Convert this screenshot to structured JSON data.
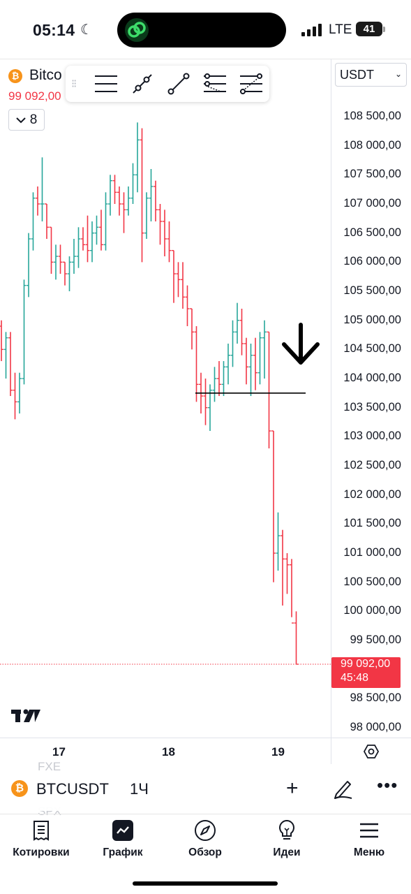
{
  "status_bar": {
    "time": "05:14",
    "network": "LTE",
    "battery": "41"
  },
  "symbol_header": {
    "name": "Bitco",
    "price": "99 092,00",
    "indicators_count": "8"
  },
  "currency_select": {
    "value": "USDT"
  },
  "price_axis": {
    "labels": [
      "108 500,00",
      "108 000,00",
      "107 500,00",
      "107 000,00",
      "106 500,00",
      "106 000,00",
      "105 500,00",
      "105 000,00",
      "104 500,00",
      "104 000,00",
      "103 500,00",
      "103 000,00",
      "102 500,00",
      "102 000,00",
      "101 500,00",
      "101 000,00",
      "100 500,00",
      "100 000,00",
      "99 500,00",
      "98 500,00",
      "98 000,00"
    ],
    "last_price": "99 092,00",
    "countdown": "45:48"
  },
  "time_axis": {
    "labels": [
      "17",
      "18",
      "19"
    ]
  },
  "drawing_toolbar": {
    "tools": [
      "horizontal-lines-icon",
      "trend-line-icon",
      "ray-line-icon",
      "parallel-channel-icon",
      "fib-retracement-icon"
    ]
  },
  "bottom_bar": {
    "symbol": "BTCUSDT",
    "interval": "1Ч",
    "ghost_1": "FXE",
    "ghost_2": "SPX"
  },
  "nav_tabs": [
    {
      "label": "Котировки",
      "icon": "watchlist-icon"
    },
    {
      "label": "График",
      "icon": "chart-icon"
    },
    {
      "label": "Обзор",
      "icon": "compass-icon"
    },
    {
      "label": "Идеи",
      "icon": "lightbulb-icon"
    },
    {
      "label": "Меню",
      "icon": "hamburger-icon"
    }
  ],
  "colors": {
    "up": "#26a69a",
    "down": "#f23645",
    "bitcoin": "#f7931a",
    "text": "#131722"
  },
  "chart_data": {
    "type": "ohlc",
    "interval": "1H",
    "ylim": [
      97850,
      108900
    ],
    "last_price": 99092,
    "bars": [
      {
        "o": 104900,
        "h": 105000,
        "l": 104300,
        "c": 104500
      },
      {
        "o": 104500,
        "h": 104800,
        "l": 104000,
        "c": 104700
      },
      {
        "o": 104700,
        "h": 104800,
        "l": 103700,
        "c": 103800
      },
      {
        "o": 103800,
        "h": 104100,
        "l": 103300,
        "c": 103600
      },
      {
        "o": 103600,
        "h": 104100,
        "l": 103400,
        "c": 104000
      },
      {
        "o": 104000,
        "h": 105700,
        "l": 103900,
        "c": 105600
      },
      {
        "o": 105600,
        "h": 106500,
        "l": 105400,
        "c": 106400
      },
      {
        "o": 106400,
        "h": 107200,
        "l": 106200,
        "c": 107100
      },
      {
        "o": 107100,
        "h": 107300,
        "l": 106800,
        "c": 107000
      },
      {
        "o": 107000,
        "h": 107800,
        "l": 106700,
        "c": 107000
      },
      {
        "o": 107000,
        "h": 107000,
        "l": 106400,
        "c": 106600
      },
      {
        "o": 106600,
        "h": 106600,
        "l": 105800,
        "c": 106000
      },
      {
        "o": 106000,
        "h": 106300,
        "l": 105700,
        "c": 106100
      },
      {
        "o": 106100,
        "h": 106300,
        "l": 105800,
        "c": 106000
      },
      {
        "o": 106000,
        "h": 106000,
        "l": 105600,
        "c": 105800
      },
      {
        "o": 105800,
        "h": 106100,
        "l": 105500,
        "c": 106000
      },
      {
        "o": 106000,
        "h": 106400,
        "l": 105800,
        "c": 106100
      },
      {
        "o": 106100,
        "h": 106600,
        "l": 105900,
        "c": 106400
      },
      {
        "o": 106400,
        "h": 106600,
        "l": 106200,
        "c": 106300
      },
      {
        "o": 106300,
        "h": 106800,
        "l": 106000,
        "c": 106200
      },
      {
        "o": 106200,
        "h": 106700,
        "l": 106000,
        "c": 106500
      },
      {
        "o": 106500,
        "h": 106800,
        "l": 106300,
        "c": 106600
      },
      {
        "o": 106600,
        "h": 106900,
        "l": 106200,
        "c": 106300
      },
      {
        "o": 106300,
        "h": 107200,
        "l": 106200,
        "c": 107000
      },
      {
        "o": 107000,
        "h": 107500,
        "l": 106800,
        "c": 107400
      },
      {
        "o": 107400,
        "h": 107500,
        "l": 107000,
        "c": 107200
      },
      {
        "o": 107200,
        "h": 107300,
        "l": 106800,
        "c": 107000
      },
      {
        "o": 107000,
        "h": 107200,
        "l": 106500,
        "c": 106900
      },
      {
        "o": 106900,
        "h": 107300,
        "l": 106800,
        "c": 107100
      },
      {
        "o": 107100,
        "h": 107700,
        "l": 107000,
        "c": 107500
      },
      {
        "o": 107500,
        "h": 108400,
        "l": 107200,
        "c": 108100
      },
      {
        "o": 108100,
        "h": 108300,
        "l": 106000,
        "c": 106500
      },
      {
        "o": 106500,
        "h": 107200,
        "l": 106400,
        "c": 107100
      },
      {
        "o": 107100,
        "h": 107600,
        "l": 106700,
        "c": 107300
      },
      {
        "o": 107300,
        "h": 107400,
        "l": 106700,
        "c": 106900
      },
      {
        "o": 106900,
        "h": 107000,
        "l": 106300,
        "c": 106700
      },
      {
        "o": 106700,
        "h": 106900,
        "l": 106100,
        "c": 106400
      },
      {
        "o": 106400,
        "h": 106700,
        "l": 106000,
        "c": 106200
      },
      {
        "o": 106200,
        "h": 106200,
        "l": 105300,
        "c": 105800
      },
      {
        "o": 105800,
        "h": 106000,
        "l": 105400,
        "c": 105700
      },
      {
        "o": 105700,
        "h": 106000,
        "l": 105200,
        "c": 105400
      },
      {
        "o": 105400,
        "h": 105600,
        "l": 104900,
        "c": 105200
      },
      {
        "o": 105200,
        "h": 105200,
        "l": 104500,
        "c": 104800
      },
      {
        "o": 104800,
        "h": 104900,
        "l": 103600,
        "c": 103900
      },
      {
        "o": 103900,
        "h": 104100,
        "l": 103400,
        "c": 103700
      },
      {
        "o": 103700,
        "h": 104000,
        "l": 103200,
        "c": 103500
      },
      {
        "o": 103500,
        "h": 103900,
        "l": 103100,
        "c": 103800
      },
      {
        "o": 103800,
        "h": 104200,
        "l": 103600,
        "c": 104000
      },
      {
        "o": 104000,
        "h": 104300,
        "l": 103700,
        "c": 103900
      },
      {
        "o": 103900,
        "h": 104300,
        "l": 103700,
        "c": 104200
      },
      {
        "o": 104200,
        "h": 104600,
        "l": 103900,
        "c": 104400
      },
      {
        "o": 104400,
        "h": 105000,
        "l": 104200,
        "c": 104800
      },
      {
        "o": 104800,
        "h": 105300,
        "l": 104600,
        "c": 105000
      },
      {
        "o": 105000,
        "h": 105200,
        "l": 104400,
        "c": 104600
      },
      {
        "o": 104600,
        "h": 104700,
        "l": 103900,
        "c": 104200
      },
      {
        "o": 104200,
        "h": 104600,
        "l": 103700,
        "c": 104400
      },
      {
        "o": 104400,
        "h": 104700,
        "l": 103800,
        "c": 104100
      },
      {
        "o": 104100,
        "h": 104800,
        "l": 103900,
        "c": 104700
      },
      {
        "o": 104700,
        "h": 105000,
        "l": 104000,
        "c": 104800
      },
      {
        "o": 104800,
        "h": 104800,
        "l": 102800,
        "c": 103100
      },
      {
        "o": 103100,
        "h": 103100,
        "l": 100500,
        "c": 101000
      },
      {
        "o": 101000,
        "h": 101700,
        "l": 100700,
        "c": 101300
      },
      {
        "o": 101300,
        "h": 101400,
        "l": 100100,
        "c": 100900
      },
      {
        "o": 100900,
        "h": 101000,
        "l": 100300,
        "c": 100800
      },
      {
        "o": 100800,
        "h": 100900,
        "l": 99900,
        "c": 99800
      },
      {
        "o": 99800,
        "h": 100000,
        "l": 99100,
        "c": 99092
      }
    ],
    "annotations": [
      {
        "type": "horizontal_segment",
        "price": 103750
      },
      {
        "type": "down_arrow"
      }
    ]
  }
}
